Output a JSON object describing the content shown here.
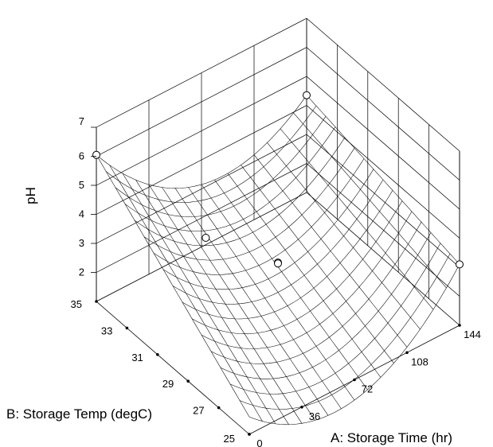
{
  "chart_data": {
    "type": "surface3d",
    "title": "",
    "xlabel": "A: Storage Time (hr)",
    "ylabel": "B: Storage Temp (degC)",
    "zlabel": "pH",
    "xlim": [
      0,
      144
    ],
    "ylim": [
      25,
      35
    ],
    "zlim": [
      1,
      7
    ],
    "x_ticks": [
      "0",
      "36",
      "72",
      "108",
      "144"
    ],
    "y_ticks": [
      "25",
      "27",
      "29",
      "31",
      "33",
      "35"
    ],
    "z_ticks": [
      "2",
      "3",
      "4",
      "5",
      "6",
      "7"
    ],
    "surface_model": {
      "form": "quadratic",
      "points": [
        {
          "x": 0,
          "y": 35,
          "z": 6.05
        },
        {
          "x": 144,
          "y": 35,
          "z": 4.35
        },
        {
          "x": 72,
          "y": 35,
          "z": 3.15
        },
        {
          "x": 144,
          "y": 25,
          "z": 3.1
        },
        {
          "x": 0,
          "y": 25,
          "z": 1.6
        }
      ]
    },
    "design_points": [
      {
        "x": 0,
        "y": 35,
        "z": 6.05
      },
      {
        "x": 144,
        "y": 35,
        "z": 4.35
      },
      {
        "x": 144,
        "y": 25,
        "z": 3.1
      },
      {
        "x": 72,
        "y": 30,
        "z": 2.75
      },
      {
        "x": 72,
        "y": 30,
        "z": 2.72
      },
      {
        "x": 54,
        "y": 33,
        "z": 2.7
      }
    ],
    "mesh_divisions": 16,
    "grid": true
  }
}
